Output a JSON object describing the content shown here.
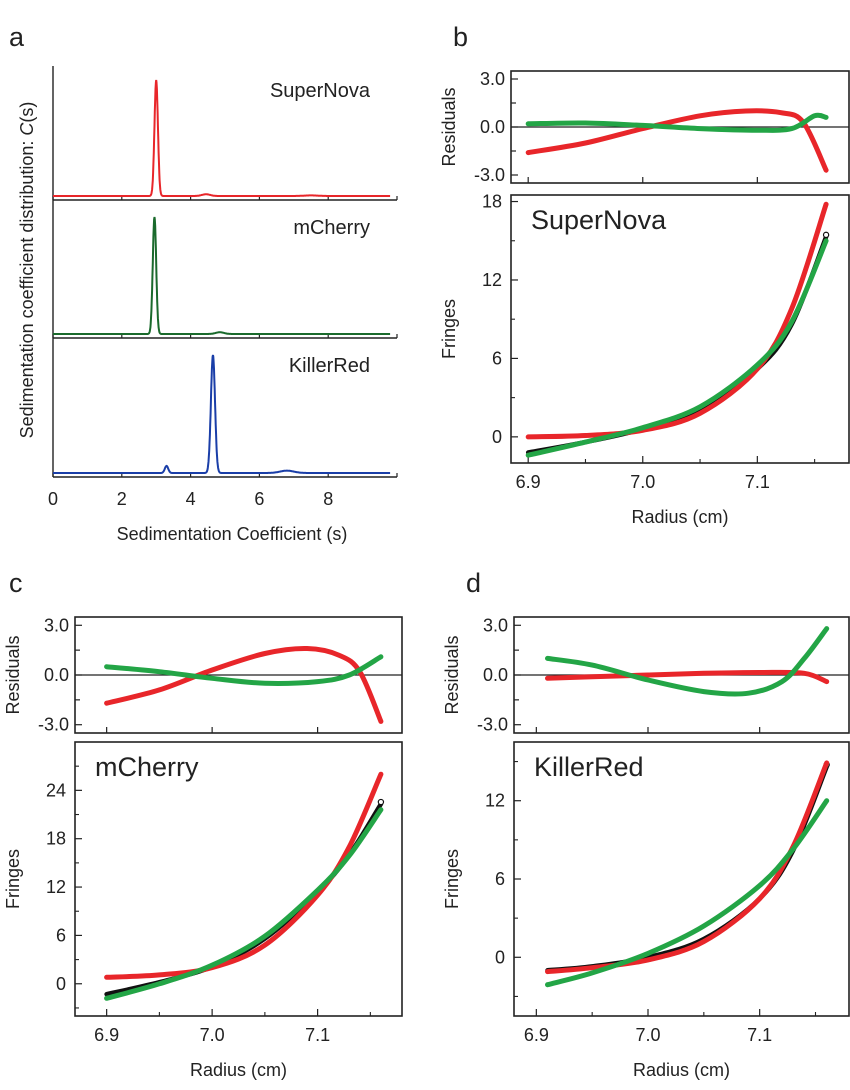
{
  "panels": {
    "a": "a",
    "b": "b",
    "c": "c",
    "d": "d"
  },
  "chart_data": [
    {
      "panel": "a",
      "type": "line",
      "xlabel": "Sedimentation Coefficient (s)",
      "ylabel_prefix": "Sedimentation coefficient distribution: ",
      "ylabel_symbol": "C",
      "ylabel_suffix": "(s)",
      "xlim": [
        0,
        10
      ],
      "xticks": [
        0,
        2,
        4,
        6,
        8
      ],
      "subplots": [
        {
          "name": "SuperNova",
          "color": "#e8262a",
          "peaks": [
            {
              "center": 3.0,
              "height": 1.0,
              "width": 0.05
            },
            {
              "center": 4.45,
              "height": 0.015,
              "width": 0.12
            },
            {
              "center": 7.5,
              "height": 0.005,
              "width": 0.2
            }
          ]
        },
        {
          "name": "mCherry",
          "color": "#1a6a2c",
          "peaks": [
            {
              "center": 2.95,
              "height": 1.0,
              "width": 0.05
            },
            {
              "center": 4.85,
              "height": 0.015,
              "width": 0.12
            }
          ]
        },
        {
          "name": "KillerRed",
          "color": "#1a3ea8",
          "peaks": [
            {
              "center": 4.65,
              "height": 1.0,
              "width": 0.06
            },
            {
              "center": 3.3,
              "height": 0.06,
              "width": 0.05
            },
            {
              "center": 6.8,
              "height": 0.02,
              "width": 0.2
            }
          ]
        }
      ]
    },
    {
      "panel": "b",
      "type": "scatter",
      "name": "SuperNova",
      "xlabel": "Radius (cm)",
      "xlim": [
        6.885,
        7.18
      ],
      "xticks": [
        6.9,
        7.0,
        7.1
      ],
      "residuals": {
        "ylabel": "Residuals",
        "ylim": [
          -3.5,
          3.5
        ],
        "yticks": [
          -3.0,
          0.0,
          3.0
        ],
        "red": [
          [
            6.9,
            -1.6
          ],
          [
            6.95,
            -1.0
          ],
          [
            7.0,
            -0.1
          ],
          [
            7.05,
            0.7
          ],
          [
            7.09,
            1.0
          ],
          [
            7.12,
            0.9
          ],
          [
            7.14,
            0.3
          ],
          [
            7.16,
            -2.7
          ]
        ],
        "green": [
          [
            6.9,
            0.2
          ],
          [
            6.95,
            0.25
          ],
          [
            7.0,
            0.1
          ],
          [
            7.05,
            -0.1
          ],
          [
            7.1,
            -0.2
          ],
          [
            7.13,
            -0.1
          ],
          [
            7.15,
            0.7
          ],
          [
            7.16,
            0.6
          ]
        ]
      },
      "fit": {
        "ylabel": "Fringes",
        "ylim": [
          -2,
          18.5
        ],
        "yticks": [
          0,
          6,
          12,
          18
        ],
        "data": [
          [
            6.9,
            -1.2
          ],
          [
            6.95,
            -0.4
          ],
          [
            7.0,
            0.6
          ],
          [
            7.05,
            2.1
          ],
          [
            7.1,
            5.2
          ],
          [
            7.13,
            8.6
          ],
          [
            7.16,
            15.3
          ]
        ],
        "red": [
          [
            6.9,
            0.0
          ],
          [
            6.95,
            0.1
          ],
          [
            7.0,
            0.5
          ],
          [
            7.05,
            1.8
          ],
          [
            7.1,
            5.2
          ],
          [
            7.13,
            9.8
          ],
          [
            7.16,
            17.8
          ]
        ],
        "green": [
          [
            6.9,
            -1.4
          ],
          [
            6.95,
            -0.4
          ],
          [
            7.0,
            0.7
          ],
          [
            7.05,
            2.3
          ],
          [
            7.1,
            5.5
          ],
          [
            7.13,
            8.8
          ],
          [
            7.16,
            15.0
          ]
        ]
      }
    },
    {
      "panel": "c",
      "type": "scatter",
      "name": "mCherry",
      "xlabel": "Radius (cm)",
      "xlim": [
        6.87,
        7.18
      ],
      "xticks": [
        6.9,
        7.0,
        7.1
      ],
      "residuals": {
        "ylabel": "Residuals",
        "ylim": [
          -3.5,
          3.5
        ],
        "yticks": [
          -3.0,
          0.0,
          3.0
        ],
        "red": [
          [
            6.9,
            -1.7
          ],
          [
            6.95,
            -0.9
          ],
          [
            7.0,
            0.3
          ],
          [
            7.05,
            1.3
          ],
          [
            7.09,
            1.6
          ],
          [
            7.12,
            1.2
          ],
          [
            7.14,
            0.2
          ],
          [
            7.16,
            -2.8
          ]
        ],
        "green": [
          [
            6.9,
            0.5
          ],
          [
            6.95,
            0.2
          ],
          [
            7.0,
            -0.2
          ],
          [
            7.05,
            -0.5
          ],
          [
            7.1,
            -0.4
          ],
          [
            7.13,
            0.0
          ],
          [
            7.16,
            1.1
          ]
        ]
      },
      "fit": {
        "ylabel": "Fringes",
        "ylim": [
          -4,
          30
        ],
        "yticks": [
          0,
          6,
          12,
          18,
          24
        ],
        "data": [
          [
            6.9,
            -1.3
          ],
          [
            6.95,
            0.2
          ],
          [
            7.0,
            2.1
          ],
          [
            7.05,
            5.6
          ],
          [
            7.1,
            11.4
          ],
          [
            7.13,
            16.0
          ],
          [
            7.16,
            22.3
          ]
        ],
        "red": [
          [
            6.9,
            0.8
          ],
          [
            6.95,
            1.1
          ],
          [
            7.0,
            2.0
          ],
          [
            7.05,
            4.8
          ],
          [
            7.1,
            11.0
          ],
          [
            7.13,
            17.0
          ],
          [
            7.16,
            26.0
          ]
        ],
        "green": [
          [
            6.9,
            -1.8
          ],
          [
            6.95,
            0.0
          ],
          [
            7.0,
            2.3
          ],
          [
            7.05,
            5.9
          ],
          [
            7.1,
            11.6
          ],
          [
            7.13,
            15.9
          ],
          [
            7.16,
            21.6
          ]
        ]
      }
    },
    {
      "panel": "d",
      "type": "scatter",
      "name": "KillerRed",
      "xlabel": "Radius (cm)",
      "xlim": [
        6.88,
        7.18
      ],
      "xticks": [
        6.9,
        7.0,
        7.1
      ],
      "residuals": {
        "ylabel": "Residuals",
        "ylim": [
          -3.5,
          3.5
        ],
        "yticks": [
          -3.0,
          0.0,
          3.0
        ],
        "red": [
          [
            6.91,
            -0.2
          ],
          [
            6.95,
            -0.1
          ],
          [
            7.0,
            0.0
          ],
          [
            7.05,
            0.1
          ],
          [
            7.1,
            0.15
          ],
          [
            7.14,
            0.1
          ],
          [
            7.16,
            -0.4
          ]
        ],
        "green": [
          [
            6.91,
            1.0
          ],
          [
            6.95,
            0.6
          ],
          [
            7.0,
            -0.3
          ],
          [
            7.05,
            -1.0
          ],
          [
            7.09,
            -1.1
          ],
          [
            7.12,
            -0.4
          ],
          [
            7.14,
            1.0
          ],
          [
            7.16,
            2.8
          ]
        ]
      },
      "fit": {
        "ylabel": "Fringes",
        "ylim": [
          -4.5,
          16.5
        ],
        "yticks": [
          0,
          6,
          12
        ],
        "data": [
          [
            6.91,
            -1.0
          ],
          [
            6.95,
            -0.7
          ],
          [
            7.0,
            0.0
          ],
          [
            7.05,
            1.4
          ],
          [
            7.1,
            4.5
          ],
          [
            7.13,
            8.2
          ],
          [
            7.16,
            14.6
          ]
        ],
        "red": [
          [
            6.91,
            -1.1
          ],
          [
            6.95,
            -0.8
          ],
          [
            7.0,
            -0.2
          ],
          [
            7.05,
            1.2
          ],
          [
            7.1,
            4.5
          ],
          [
            7.13,
            8.5
          ],
          [
            7.16,
            14.9
          ]
        ],
        "green": [
          [
            6.91,
            -2.1
          ],
          [
            6.95,
            -1.2
          ],
          [
            7.0,
            0.3
          ],
          [
            7.05,
            2.4
          ],
          [
            7.1,
            5.5
          ],
          [
            7.13,
            8.3
          ],
          [
            7.16,
            12.0
          ]
        ]
      }
    }
  ],
  "colors": {
    "data": "#111111",
    "fit_red": "#e8262a",
    "fit_green": "#23a546"
  }
}
